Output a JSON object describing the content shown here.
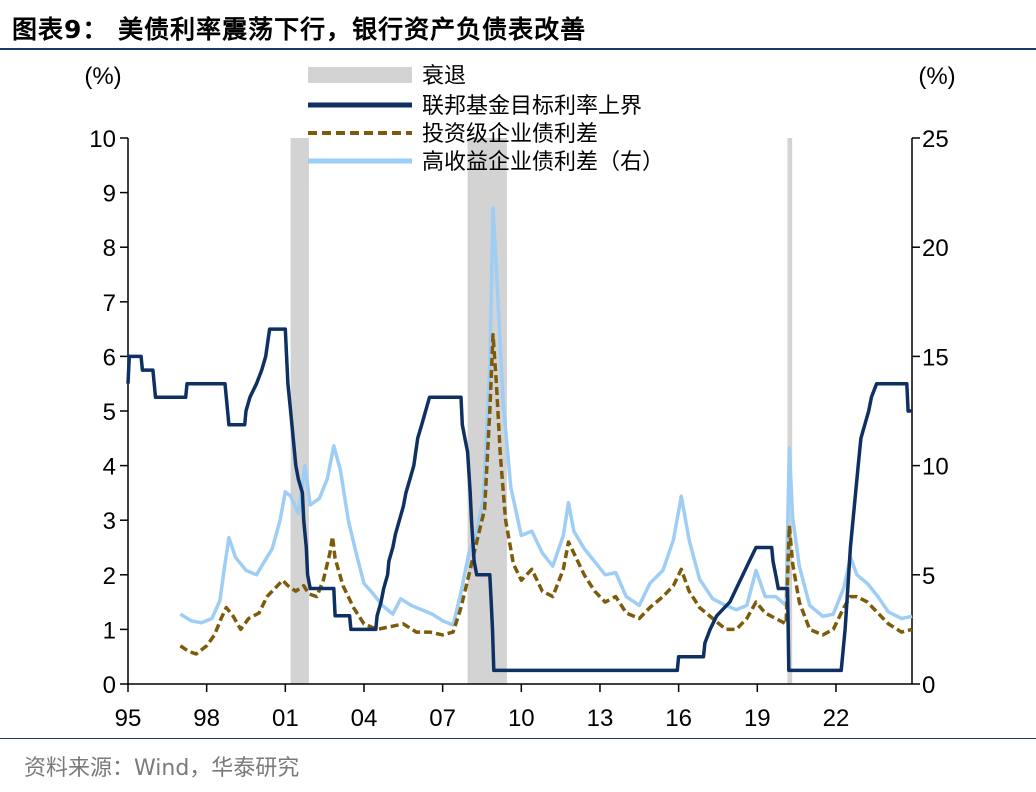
{
  "figure": {
    "title": "图表9： 美债利率震荡下行，银行资产负债表改善",
    "source": "资料来源：Wind，华泰研究"
  },
  "colors": {
    "fed": "#0e3063",
    "ig": "#7d5b0a",
    "hy": "#9ecdf5",
    "recession": "#d3d3d3",
    "rule": "#1a3a70",
    "source_text": "#7a7a7a"
  },
  "chart_data": {
    "type": "line",
    "left_unit": "(%)",
    "right_unit": "(%)",
    "ylim_left": [
      0,
      10
    ],
    "ylim_right": [
      0,
      25
    ],
    "xlim": [
      1995.0,
      2024.9
    ],
    "x_tick_labels": [
      "95",
      "98",
      "01",
      "04",
      "07",
      "10",
      "13",
      "16",
      "19",
      "22"
    ],
    "x_tick_years": [
      1995,
      1998,
      2001,
      2004,
      2007,
      2010,
      2013,
      2016,
      2019,
      2022
    ],
    "y_left_ticks": [
      0,
      1,
      2,
      3,
      4,
      5,
      6,
      7,
      8,
      9,
      10
    ],
    "y_right_ticks": [
      0,
      5,
      10,
      15,
      20,
      25
    ],
    "legend": [
      "衰退",
      "联邦基金目标利率上界",
      "投资级企业债利差",
      "高收益企业债利差（右）"
    ],
    "recessions": [
      [
        2001.2,
        2001.9
      ],
      [
        2007.95,
        2009.45
      ],
      [
        2020.15,
        2020.33
      ]
    ],
    "series": [
      {
        "name": "联邦基金目标利率上界",
        "axis": "left",
        "style": "solid",
        "points": [
          [
            1995.0,
            5.5
          ],
          [
            1995.05,
            6.0
          ],
          [
            1995.5,
            6.0
          ],
          [
            1995.55,
            5.75
          ],
          [
            1995.95,
            5.75
          ],
          [
            1996.0,
            5.5
          ],
          [
            1996.05,
            5.25
          ],
          [
            1997.2,
            5.25
          ],
          [
            1997.25,
            5.5
          ],
          [
            1998.7,
            5.5
          ],
          [
            1998.75,
            5.25
          ],
          [
            1998.8,
            5.0
          ],
          [
            1998.85,
            4.75
          ],
          [
            1999.45,
            4.75
          ],
          [
            1999.5,
            5.0
          ],
          [
            1999.65,
            5.25
          ],
          [
            1999.9,
            5.5
          ],
          [
            2000.1,
            5.75
          ],
          [
            2000.25,
            6.0
          ],
          [
            2000.4,
            6.5
          ],
          [
            2001.0,
            6.5
          ],
          [
            2001.05,
            6.0
          ],
          [
            2001.1,
            5.5
          ],
          [
            2001.2,
            5.0
          ],
          [
            2001.3,
            4.5
          ],
          [
            2001.4,
            4.0
          ],
          [
            2001.5,
            3.75
          ],
          [
            2001.65,
            3.5
          ],
          [
            2001.7,
            3.0
          ],
          [
            2001.8,
            2.5
          ],
          [
            2001.85,
            2.0
          ],
          [
            2001.95,
            1.75
          ],
          [
            2002.85,
            1.75
          ],
          [
            2002.9,
            1.25
          ],
          [
            2003.45,
            1.25
          ],
          [
            2003.5,
            1.0
          ],
          [
            2004.45,
            1.0
          ],
          [
            2004.5,
            1.25
          ],
          [
            2004.65,
            1.5
          ],
          [
            2004.75,
            1.75
          ],
          [
            2004.9,
            2.0
          ],
          [
            2004.95,
            2.25
          ],
          [
            2005.1,
            2.5
          ],
          [
            2005.2,
            2.75
          ],
          [
            2005.35,
            3.0
          ],
          [
            2005.5,
            3.25
          ],
          [
            2005.6,
            3.5
          ],
          [
            2005.75,
            3.75
          ],
          [
            2005.9,
            4.0
          ],
          [
            2006.05,
            4.5
          ],
          [
            2006.2,
            4.75
          ],
          [
            2006.35,
            5.0
          ],
          [
            2006.5,
            5.25
          ],
          [
            2007.7,
            5.25
          ],
          [
            2007.75,
            4.75
          ],
          [
            2007.85,
            4.5
          ],
          [
            2007.95,
            4.25
          ],
          [
            2008.05,
            3.5
          ],
          [
            2008.1,
            3.0
          ],
          [
            2008.2,
            2.25
          ],
          [
            2008.3,
            2.0
          ],
          [
            2008.8,
            2.0
          ],
          [
            2008.85,
            1.5
          ],
          [
            2008.9,
            1.0
          ],
          [
            2008.95,
            0.25
          ],
          [
            2015.95,
            0.25
          ],
          [
            2016.0,
            0.5
          ],
          [
            2016.95,
            0.5
          ],
          [
            2017.0,
            0.75
          ],
          [
            2017.2,
            1.0
          ],
          [
            2017.45,
            1.25
          ],
          [
            2017.95,
            1.5
          ],
          [
            2018.2,
            1.75
          ],
          [
            2018.45,
            2.0
          ],
          [
            2018.7,
            2.25
          ],
          [
            2018.95,
            2.5
          ],
          [
            2019.55,
            2.5
          ],
          [
            2019.6,
            2.25
          ],
          [
            2019.7,
            2.0
          ],
          [
            2019.8,
            1.75
          ],
          [
            2020.15,
            1.75
          ],
          [
            2020.17,
            1.25
          ],
          [
            2020.2,
            0.25
          ],
          [
            2022.2,
            0.25
          ],
          [
            2022.35,
            1.0
          ],
          [
            2022.45,
            1.75
          ],
          [
            2022.55,
            2.5
          ],
          [
            2022.7,
            3.25
          ],
          [
            2022.85,
            4.0
          ],
          [
            2022.95,
            4.5
          ],
          [
            2023.1,
            4.75
          ],
          [
            2023.25,
            5.0
          ],
          [
            2023.35,
            5.25
          ],
          [
            2023.55,
            5.5
          ],
          [
            2024.7,
            5.5
          ],
          [
            2024.75,
            5.0
          ],
          [
            2024.9,
            5.0
          ]
        ]
      },
      {
        "name": "投资级企业债利差",
        "axis": "left",
        "style": "dashed",
        "points": [
          [
            1997.0,
            0.7
          ],
          [
            1997.3,
            0.6
          ],
          [
            1997.6,
            0.55
          ],
          [
            1998.0,
            0.7
          ],
          [
            1998.3,
            0.9
          ],
          [
            1998.55,
            1.2
          ],
          [
            1998.75,
            1.4
          ],
          [
            1999.0,
            1.25
          ],
          [
            1999.3,
            1.0
          ],
          [
            1999.6,
            1.2
          ],
          [
            2000.0,
            1.3
          ],
          [
            2000.3,
            1.6
          ],
          [
            2000.6,
            1.75
          ],
          [
            2000.9,
            1.9
          ],
          [
            2001.1,
            1.8
          ],
          [
            2001.4,
            1.7
          ],
          [
            2001.7,
            1.8
          ],
          [
            2001.9,
            1.65
          ],
          [
            2002.2,
            1.6
          ],
          [
            2002.45,
            1.9
          ],
          [
            2002.7,
            2.4
          ],
          [
            2002.8,
            2.7
          ],
          [
            2002.9,
            2.3
          ],
          [
            2003.2,
            1.8
          ],
          [
            2003.6,
            1.4
          ],
          [
            2004.0,
            1.1
          ],
          [
            2004.5,
            1.0
          ],
          [
            2005.0,
            1.05
          ],
          [
            2005.5,
            1.1
          ],
          [
            2006.0,
            0.95
          ],
          [
            2006.5,
            0.95
          ],
          [
            2007.0,
            0.9
          ],
          [
            2007.4,
            0.95
          ],
          [
            2007.7,
            1.4
          ],
          [
            2008.0,
            2.0
          ],
          [
            2008.3,
            2.6
          ],
          [
            2008.6,
            3.2
          ],
          [
            2008.8,
            5.0
          ],
          [
            2008.92,
            6.4
          ],
          [
            2009.05,
            5.5
          ],
          [
            2009.2,
            4.2
          ],
          [
            2009.4,
            3.0
          ],
          [
            2009.7,
            2.2
          ],
          [
            2010.0,
            1.9
          ],
          [
            2010.4,
            2.1
          ],
          [
            2010.8,
            1.7
          ],
          [
            2011.2,
            1.6
          ],
          [
            2011.6,
            2.1
          ],
          [
            2011.8,
            2.6
          ],
          [
            2012.0,
            2.4
          ],
          [
            2012.4,
            2.0
          ],
          [
            2012.8,
            1.7
          ],
          [
            2013.2,
            1.5
          ],
          [
            2013.6,
            1.6
          ],
          [
            2014.0,
            1.3
          ],
          [
            2014.5,
            1.2
          ],
          [
            2014.9,
            1.4
          ],
          [
            2015.4,
            1.6
          ],
          [
            2015.8,
            1.8
          ],
          [
            2016.1,
            2.1
          ],
          [
            2016.4,
            1.7
          ],
          [
            2016.8,
            1.4
          ],
          [
            2017.3,
            1.2
          ],
          [
            2017.8,
            1.0
          ],
          [
            2018.2,
            1.0
          ],
          [
            2018.6,
            1.2
          ],
          [
            2018.95,
            1.5
          ],
          [
            2019.3,
            1.3
          ],
          [
            2019.7,
            1.2
          ],
          [
            2020.1,
            1.1
          ],
          [
            2020.22,
            2.9
          ],
          [
            2020.35,
            2.2
          ],
          [
            2020.6,
            1.5
          ],
          [
            2021.0,
            1.0
          ],
          [
            2021.5,
            0.9
          ],
          [
            2021.9,
            1.0
          ],
          [
            2022.3,
            1.4
          ],
          [
            2022.55,
            1.6
          ],
          [
            2022.8,
            1.6
          ],
          [
            2023.2,
            1.5
          ],
          [
            2023.6,
            1.3
          ],
          [
            2024.0,
            1.1
          ],
          [
            2024.5,
            0.95
          ],
          [
            2024.9,
            1.0
          ]
        ]
      },
      {
        "name": "高收益企业债利差（右）",
        "axis": "right",
        "style": "solid",
        "points": [
          [
            1997.0,
            3.2
          ],
          [
            1997.4,
            2.9
          ],
          [
            1997.8,
            2.8
          ],
          [
            1998.2,
            3.0
          ],
          [
            1998.5,
            3.8
          ],
          [
            1998.7,
            5.5
          ],
          [
            1998.85,
            6.7
          ],
          [
            1999.1,
            5.8
          ],
          [
            1999.5,
            5.2
          ],
          [
            1999.9,
            5.0
          ],
          [
            2000.2,
            5.6
          ],
          [
            2000.5,
            6.2
          ],
          [
            2000.8,
            7.5
          ],
          [
            2001.0,
            8.8
          ],
          [
            2001.2,
            8.6
          ],
          [
            2001.5,
            7.8
          ],
          [
            2001.75,
            10.0
          ],
          [
            2001.95,
            8.2
          ],
          [
            2002.3,
            8.5
          ],
          [
            2002.6,
            9.4
          ],
          [
            2002.85,
            10.9
          ],
          [
            2003.1,
            9.8
          ],
          [
            2003.4,
            7.5
          ],
          [
            2003.7,
            6.0
          ],
          [
            2004.0,
            4.6
          ],
          [
            2004.3,
            4.2
          ],
          [
            2004.7,
            3.6
          ],
          [
            2005.1,
            3.2
          ],
          [
            2005.4,
            3.9
          ],
          [
            2005.8,
            3.6
          ],
          [
            2006.2,
            3.4
          ],
          [
            2006.6,
            3.2
          ],
          [
            2007.0,
            2.9
          ],
          [
            2007.4,
            2.7
          ],
          [
            2007.7,
            4.2
          ],
          [
            2008.0,
            6.0
          ],
          [
            2008.3,
            7.0
          ],
          [
            2008.55,
            8.5
          ],
          [
            2008.8,
            14.5
          ],
          [
            2008.92,
            21.8
          ],
          [
            2009.05,
            19.0
          ],
          [
            2009.3,
            13.0
          ],
          [
            2009.6,
            9.0
          ],
          [
            2010.0,
            6.8
          ],
          [
            2010.4,
            7.0
          ],
          [
            2010.8,
            6.0
          ],
          [
            2011.2,
            5.4
          ],
          [
            2011.6,
            6.8
          ],
          [
            2011.8,
            8.3
          ],
          [
            2012.0,
            7.0
          ],
          [
            2012.4,
            6.2
          ],
          [
            2012.8,
            5.6
          ],
          [
            2013.2,
            5.0
          ],
          [
            2013.6,
            5.1
          ],
          [
            2014.0,
            4.0
          ],
          [
            2014.5,
            3.6
          ],
          [
            2014.9,
            4.6
          ],
          [
            2015.4,
            5.2
          ],
          [
            2015.8,
            6.6
          ],
          [
            2016.1,
            8.6
          ],
          [
            2016.4,
            6.6
          ],
          [
            2016.8,
            4.8
          ],
          [
            2017.3,
            3.9
          ],
          [
            2017.8,
            3.6
          ],
          [
            2018.2,
            3.4
          ],
          [
            2018.6,
            3.6
          ],
          [
            2018.95,
            5.2
          ],
          [
            2019.3,
            4.0
          ],
          [
            2019.7,
            4.0
          ],
          [
            2020.1,
            3.6
          ],
          [
            2020.22,
            10.8
          ],
          [
            2020.35,
            7.6
          ],
          [
            2020.6,
            5.4
          ],
          [
            2021.0,
            3.6
          ],
          [
            2021.5,
            3.1
          ],
          [
            2021.9,
            3.2
          ],
          [
            2022.3,
            4.4
          ],
          [
            2022.55,
            5.8
          ],
          [
            2022.8,
            5.0
          ],
          [
            2023.2,
            4.6
          ],
          [
            2023.6,
            4.0
          ],
          [
            2024.0,
            3.3
          ],
          [
            2024.5,
            3.0
          ],
          [
            2024.9,
            3.1
          ]
        ]
      }
    ]
  }
}
